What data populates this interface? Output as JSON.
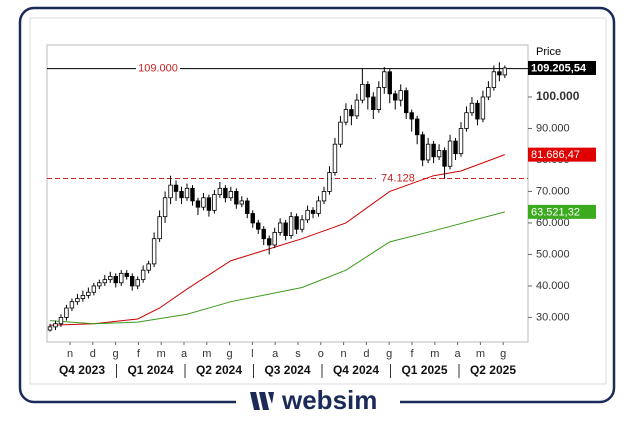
{
  "chart_data": {
    "type": "candlestick",
    "axis_label": "Price",
    "ylim": [
      22.2,
      116.5
    ],
    "yticks": [
      {
        "value": 30,
        "label": "30.000"
      },
      {
        "value": 40,
        "label": "40.000"
      },
      {
        "value": 50,
        "label": "50.000"
      },
      {
        "value": 60,
        "label": "60.000"
      },
      {
        "value": 70,
        "label": "70.000"
      },
      {
        "value": 80,
        "label": "80.000"
      },
      {
        "value": 90,
        "label": "90.000"
      },
      {
        "value": 100,
        "label": "100.000"
      }
    ],
    "grid": false,
    "months": [
      "n",
      "d",
      "g",
      "f",
      "m",
      "a",
      "m",
      "g",
      "l",
      "a",
      "s",
      "o",
      "n",
      "d",
      "g",
      "f",
      "m",
      "a",
      "m",
      "g"
    ],
    "quarters": [
      "Q4 2023",
      "Q1 2024",
      "Q2 2024",
      "Q3 2024",
      "Q4 2024",
      "Q1 2025",
      "Q2 2025"
    ],
    "ohlc": [
      [
        26,
        28,
        25.5,
        27
      ],
      [
        27,
        29,
        26,
        28
      ],
      [
        28,
        31,
        27,
        30
      ],
      [
        30,
        34,
        29,
        33
      ],
      [
        33,
        36,
        32,
        35
      ],
      [
        35,
        37.5,
        34,
        36
      ],
      [
        36,
        38.5,
        35,
        37
      ],
      [
        37,
        39.5,
        36,
        38
      ],
      [
        38,
        41,
        37,
        40
      ],
      [
        40,
        42,
        39,
        41
      ],
      [
        41,
        43.5,
        40,
        42
      ],
      [
        42,
        44.5,
        41,
        43
      ],
      [
        43,
        44,
        39.5,
        41
      ],
      [
        41,
        45,
        40,
        44
      ],
      [
        44,
        45,
        42,
        43
      ],
      [
        43,
        44,
        38.5,
        40
      ],
      [
        40,
        43,
        39,
        42
      ],
      [
        42,
        46.5,
        41,
        45
      ],
      [
        45,
        48,
        44,
        47
      ],
      [
        47,
        57,
        46,
        55
      ],
      [
        55,
        64,
        54,
        62
      ],
      [
        62,
        70,
        60,
        68
      ],
      [
        68,
        75,
        66,
        72
      ],
      [
        72,
        73.5,
        67,
        70
      ],
      [
        70,
        71.5,
        66,
        68
      ],
      [
        68,
        72.5,
        67,
        71
      ],
      [
        71,
        72,
        65.5,
        67
      ],
      [
        67,
        68,
        62.5,
        65
      ],
      [
        65,
        69.5,
        64,
        68
      ],
      [
        68,
        69,
        62,
        64
      ],
      [
        64,
        70.5,
        63,
        69
      ],
      [
        69,
        73,
        68,
        71
      ],
      [
        71,
        72,
        66.5,
        68
      ],
      [
        68,
        71.5,
        67,
        70
      ],
      [
        70,
        71,
        64.5,
        66
      ],
      [
        66,
        68.5,
        65,
        67
      ],
      [
        67,
        68,
        61.5,
        63
      ],
      [
        63,
        64,
        58.5,
        60
      ],
      [
        60,
        61,
        56.5,
        58
      ],
      [
        58,
        59,
        53,
        55
      ],
      [
        55,
        56,
        50,
        53
      ],
      [
        53,
        58.5,
        52,
        57
      ],
      [
        57,
        61.5,
        56,
        60
      ],
      [
        60,
        61,
        54.5,
        56
      ],
      [
        56,
        63.5,
        55,
        62
      ],
      [
        62,
        63,
        56.5,
        58
      ],
      [
        58,
        62.5,
        57,
        61
      ],
      [
        61,
        65.5,
        60,
        64
      ],
      [
        64,
        65,
        61.5,
        63
      ],
      [
        63,
        68.5,
        62,
        67
      ],
      [
        67,
        71.5,
        66,
        70
      ],
      [
        70,
        78,
        69,
        76
      ],
      [
        76,
        87,
        75,
        85
      ],
      [
        85,
        94,
        84,
        92
      ],
      [
        92,
        98,
        91,
        96
      ],
      [
        96,
        97.5,
        91,
        94
      ],
      [
        94,
        101,
        93,
        99
      ],
      [
        99,
        109,
        98,
        104
      ],
      [
        104,
        105,
        96,
        100
      ],
      [
        100,
        101.5,
        93,
        96
      ],
      [
        96,
        105,
        95,
        103
      ],
      [
        103,
        109.5,
        101,
        108
      ],
      [
        108,
        109,
        98,
        101
      ],
      [
        101,
        102,
        96,
        99
      ],
      [
        99,
        104,
        97,
        102
      ],
      [
        102,
        103,
        93,
        95
      ],
      [
        95,
        96,
        89,
        93
      ],
      [
        93,
        94,
        85,
        88
      ],
      [
        88,
        89,
        78,
        80
      ],
      [
        80,
        87,
        79,
        85
      ],
      [
        85,
        86,
        79,
        81
      ],
      [
        81,
        85,
        80,
        83
      ],
      [
        83,
        84,
        74,
        78
      ],
      [
        78,
        88,
        77,
        86
      ],
      [
        86,
        87,
        80,
        82
      ],
      [
        82,
        92,
        81,
        90
      ],
      [
        90,
        97,
        89,
        95
      ],
      [
        95,
        100,
        94,
        98
      ],
      [
        98,
        99,
        91,
        93
      ],
      [
        93,
        102,
        92,
        100
      ],
      [
        100,
        105,
        99,
        103
      ],
      [
        103,
        110,
        102,
        108
      ],
      [
        108,
        111,
        105,
        107
      ],
      [
        107,
        110,
        106,
        109.2
      ]
    ],
    "series": [
      {
        "color": "#cc0000",
        "x": [
          0,
          8,
          16,
          20,
          25,
          33,
          46,
          54,
          62,
          70,
          75,
          83
        ],
        "values": [
          27.5,
          28,
          29.5,
          33,
          39,
          48,
          55,
          60,
          70,
          75,
          76.5,
          81.68647
        ]
      },
      {
        "color": "#3c9a1e",
        "x": [
          0,
          8,
          16,
          25,
          33,
          46,
          54,
          62,
          70,
          83
        ],
        "values": [
          29,
          28,
          28.5,
          31,
          35,
          39.5,
          45,
          54,
          57.5,
          63.52132
        ]
      }
    ],
    "price_labels": [
      {
        "value": 109.20554,
        "label": "109.205,54",
        "color": "#000000"
      },
      {
        "value": 81.68647,
        "label": "81.686,47",
        "color": "#e00000"
      },
      {
        "value": 63.52132,
        "label": "63.521,32",
        "color": "#3caa1e"
      }
    ],
    "hlines": [
      {
        "value": 109,
        "label": "109.000",
        "color": "#000000",
        "dashed": false
      },
      {
        "value": 74.128,
        "label": "74.128",
        "color": "#cc2222",
        "dashed": true
      }
    ],
    "logo": "websim"
  }
}
